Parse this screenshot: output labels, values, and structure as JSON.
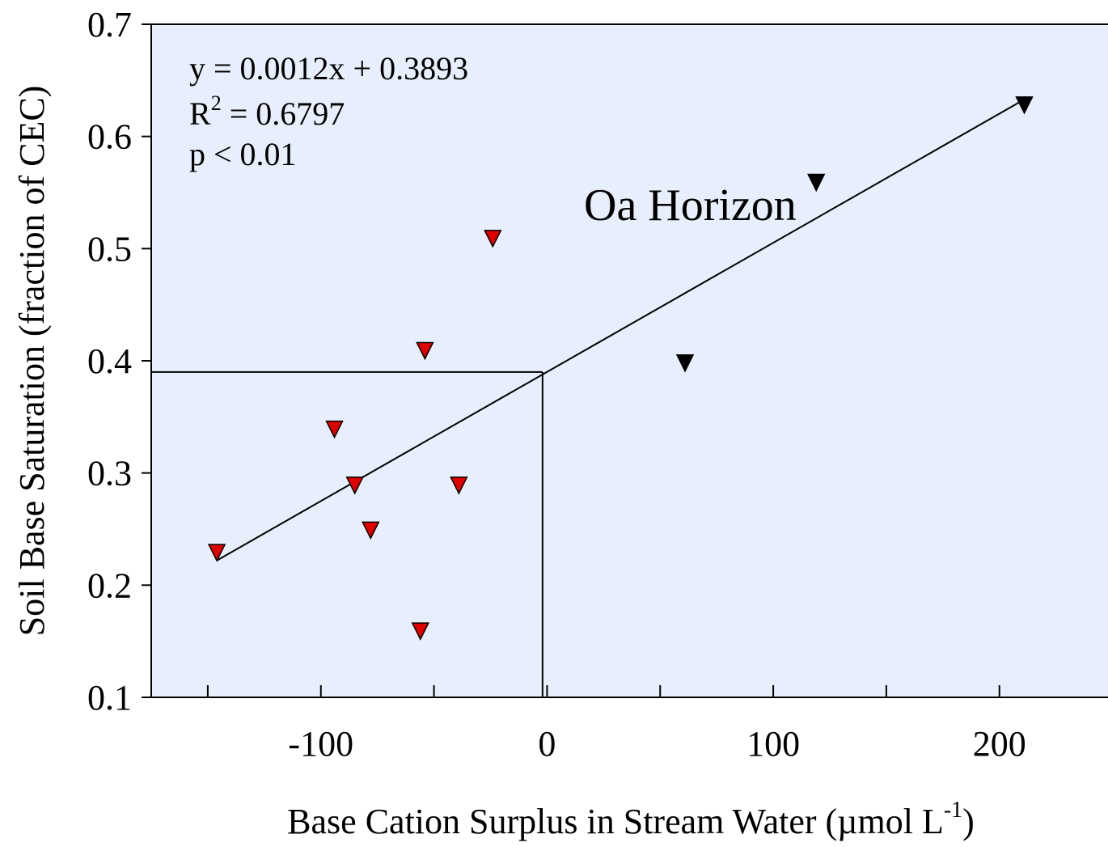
{
  "chart_data": {
    "type": "scatter",
    "xlabel": {
      "text": "Base Cation Surplus in Stream Water (µmol L",
      "sup": "-1",
      "end": ")"
    },
    "ylabel": "Soil Base Saturation (fraction of CEC)",
    "annotations": {
      "equation": "y = 0.0012x + 0.3893",
      "r2": {
        "text": "R",
        "sup": "2",
        "end": " = 0.6797"
      },
      "p": "p < 0.01",
      "label": "Oa Horizon"
    },
    "xlim": [
      -175,
      248
    ],
    "ylim": [
      0.1,
      0.7
    ],
    "xticks": [
      -100,
      0,
      100,
      200
    ],
    "xminor_ticks": [
      -150,
      -50,
      50,
      150
    ],
    "yticks": [
      0.1,
      0.2,
      0.3,
      0.4,
      0.5,
      0.6,
      0.7
    ],
    "background": "#e8effc",
    "series": [
      {
        "color": "#e00000",
        "x": [
          -146,
          -94,
          -85,
          -78,
          -56,
          -54,
          -39,
          -24
        ],
        "values": [
          0.229,
          0.339,
          0.289,
          0.249,
          0.159,
          0.409,
          0.289,
          0.509
        ]
      },
      {
        "color": "#000000",
        "x": [
          61,
          119,
          211
        ],
        "values": [
          0.398,
          0.559,
          0.628
        ]
      }
    ],
    "trend_line": {
      "x": [
        -146,
        211
      ],
      "y": [
        0.222,
        0.633
      ]
    },
    "reference_point": {
      "x": -2,
      "y": 0.39
    }
  }
}
